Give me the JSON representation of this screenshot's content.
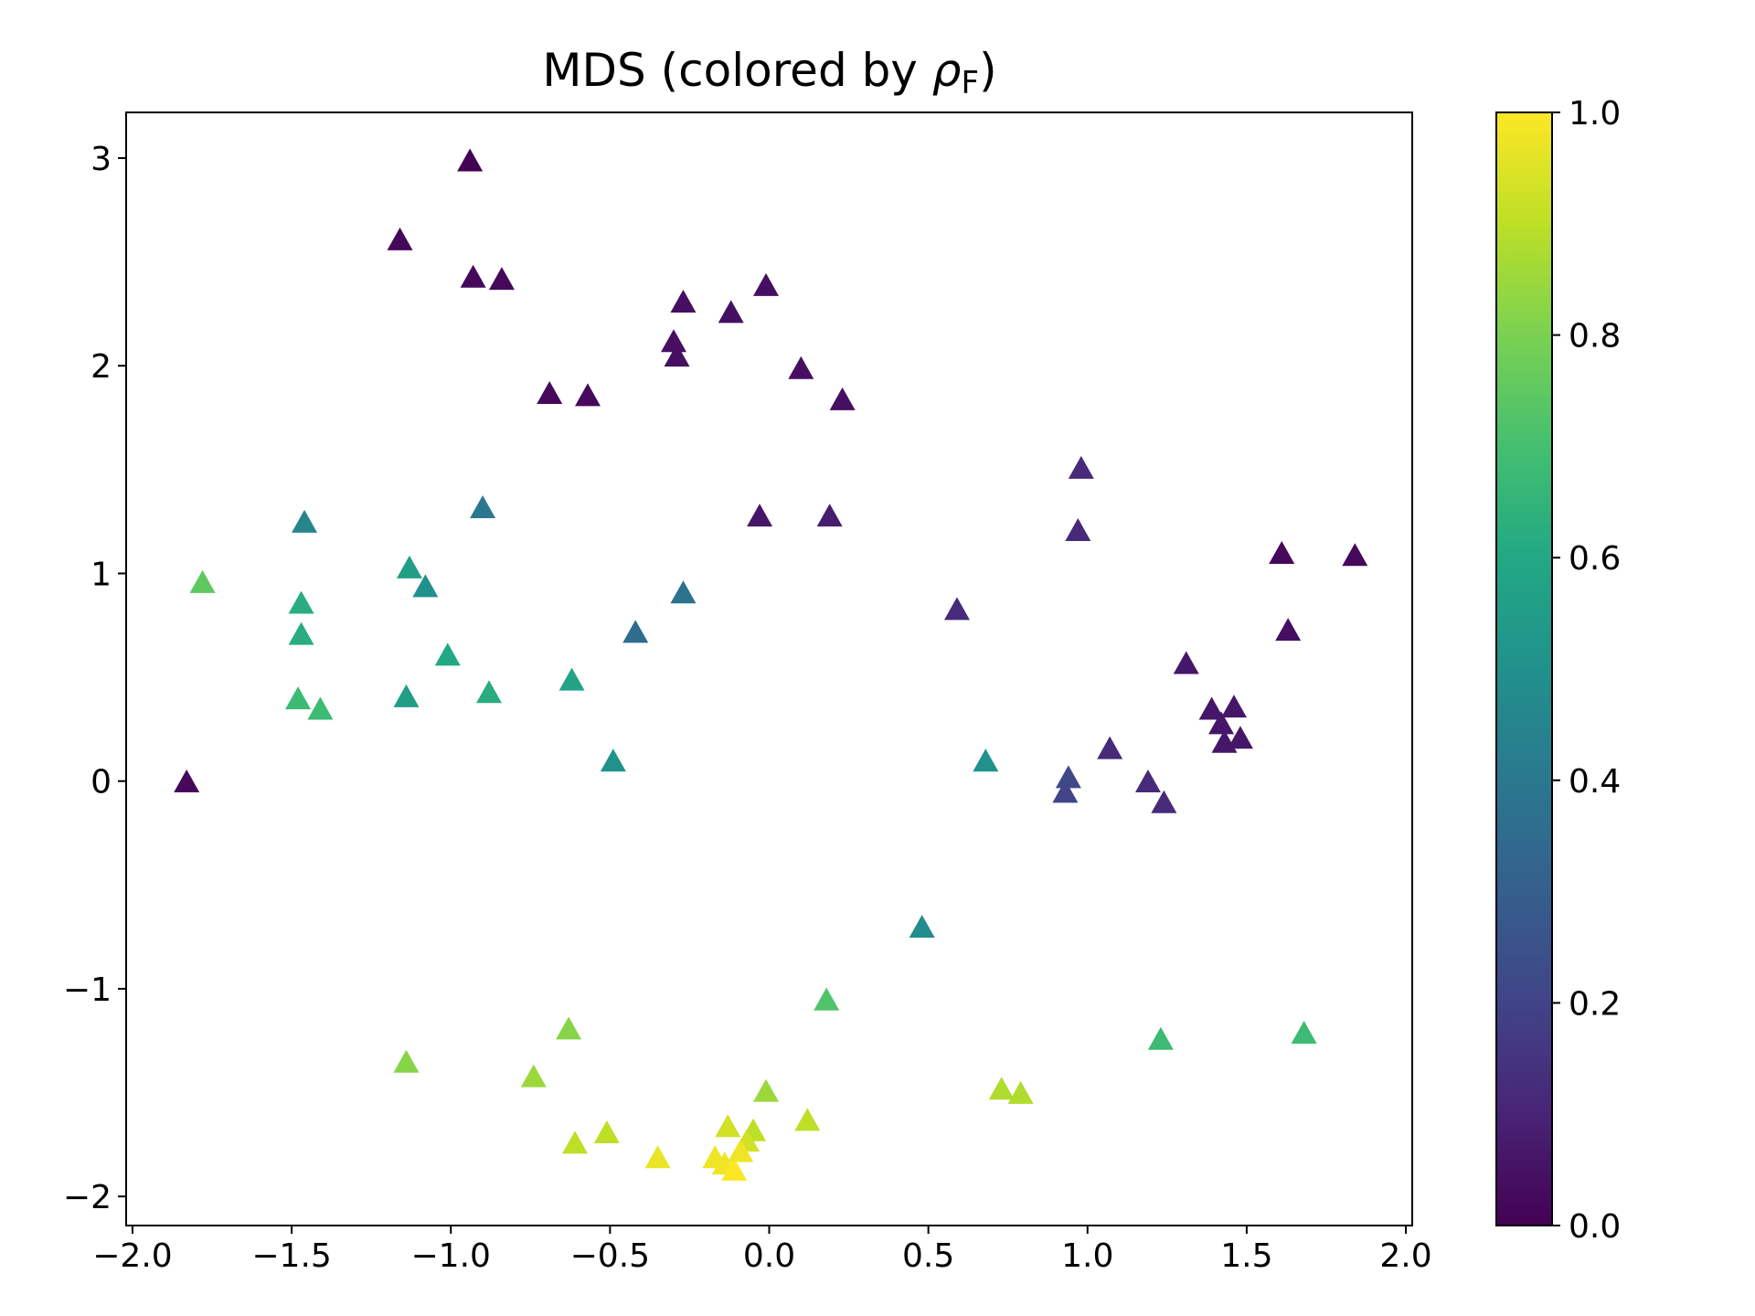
{
  "chart_data": {
    "type": "scatter",
    "title": "MDS (colored by ",
    "title_symbol": "ρ",
    "title_subscript": "F",
    "title_close": ")",
    "marker": "triangle",
    "colormap": "viridis",
    "xlim": [
      -2.02,
      2.02
    ],
    "ylim": [
      -2.14,
      3.22
    ],
    "xticks": [
      -2.0,
      -1.5,
      -1.0,
      -0.5,
      0.0,
      0.5,
      1.0,
      1.5,
      2.0
    ],
    "xtick_labels": [
      "−2.0",
      "−1.5",
      "−1.0",
      "−0.5",
      "0.0",
      "0.5",
      "1.0",
      "1.5",
      "2.0"
    ],
    "yticks": [
      -2,
      -1,
      0,
      1,
      2,
      3
    ],
    "ytick_labels": [
      "−2",
      "−1",
      "0",
      "1",
      "2",
      "3"
    ],
    "colorbar": {
      "range": [
        0.0,
        1.0
      ],
      "ticks": [
        0.0,
        0.2,
        0.4,
        0.6,
        0.8,
        1.0
      ],
      "tick_labels": [
        "0.0",
        "0.2",
        "0.4",
        "0.6",
        "0.8",
        "1.0"
      ]
    },
    "points": [
      {
        "x": -0.94,
        "y": 2.98,
        "c": 0.0
      },
      {
        "x": -1.16,
        "y": 2.6,
        "c": 0.02
      },
      {
        "x": -0.93,
        "y": 2.42,
        "c": 0.02
      },
      {
        "x": -0.84,
        "y": 2.41,
        "c": 0.02
      },
      {
        "x": -0.27,
        "y": 2.3,
        "c": 0.04
      },
      {
        "x": -0.3,
        "y": 2.11,
        "c": 0.04
      },
      {
        "x": -0.29,
        "y": 2.04,
        "c": 0.04
      },
      {
        "x": -0.12,
        "y": 2.25,
        "c": 0.04
      },
      {
        "x": -0.01,
        "y": 2.38,
        "c": 0.04
      },
      {
        "x": 0.1,
        "y": 1.98,
        "c": 0.04
      },
      {
        "x": 0.23,
        "y": 1.83,
        "c": 0.04
      },
      {
        "x": -0.69,
        "y": 1.86,
        "c": 0.02
      },
      {
        "x": -0.57,
        "y": 1.85,
        "c": 0.02
      },
      {
        "x": -0.03,
        "y": 1.27,
        "c": 0.06
      },
      {
        "x": 0.19,
        "y": 1.27,
        "c": 0.08
      },
      {
        "x": 0.98,
        "y": 1.5,
        "c": 0.12
      },
      {
        "x": 0.97,
        "y": 1.2,
        "c": 0.12
      },
      {
        "x": 0.59,
        "y": 0.82,
        "c": 0.12
      },
      {
        "x": -1.83,
        "y": -0.01,
        "c": 0.02
      },
      {
        "x": -1.46,
        "y": 1.24,
        "c": 0.45
      },
      {
        "x": -0.9,
        "y": 1.31,
        "c": 0.4
      },
      {
        "x": -1.13,
        "y": 1.02,
        "c": 0.55
      },
      {
        "x": -1.08,
        "y": 0.93,
        "c": 0.5
      },
      {
        "x": -1.47,
        "y": 0.85,
        "c": 0.62
      },
      {
        "x": -1.47,
        "y": 0.7,
        "c": 0.62
      },
      {
        "x": -1.78,
        "y": 0.95,
        "c": 0.75
      },
      {
        "x": -1.01,
        "y": 0.6,
        "c": 0.6
      },
      {
        "x": -1.48,
        "y": 0.39,
        "c": 0.68
      },
      {
        "x": -1.41,
        "y": 0.34,
        "c": 0.68
      },
      {
        "x": -1.14,
        "y": 0.4,
        "c": 0.55
      },
      {
        "x": -0.88,
        "y": 0.42,
        "c": 0.62
      },
      {
        "x": -0.62,
        "y": 0.48,
        "c": 0.58
      },
      {
        "x": -0.27,
        "y": 0.9,
        "c": 0.38
      },
      {
        "x": -0.42,
        "y": 0.71,
        "c": 0.35
      },
      {
        "x": -0.49,
        "y": 0.09,
        "c": 0.5
      },
      {
        "x": 0.68,
        "y": 0.09,
        "c": 0.5
      },
      {
        "x": 0.48,
        "y": -0.71,
        "c": 0.48
      },
      {
        "x": 0.94,
        "y": 0.01,
        "c": 0.22
      },
      {
        "x": 0.93,
        "y": -0.06,
        "c": 0.2
      },
      {
        "x": 1.07,
        "y": 0.15,
        "c": 0.12
      },
      {
        "x": 1.19,
        "y": -0.01,
        "c": 0.12
      },
      {
        "x": 1.24,
        "y": -0.11,
        "c": 0.12
      },
      {
        "x": 1.31,
        "y": 0.56,
        "c": 0.06
      },
      {
        "x": 1.39,
        "y": 0.34,
        "c": 0.06
      },
      {
        "x": 1.42,
        "y": 0.27,
        "c": 0.06
      },
      {
        "x": 1.43,
        "y": 0.18,
        "c": 0.06
      },
      {
        "x": 1.46,
        "y": 0.35,
        "c": 0.06
      },
      {
        "x": 1.48,
        "y": 0.2,
        "c": 0.06
      },
      {
        "x": 1.61,
        "y": 1.09,
        "c": 0.02
      },
      {
        "x": 1.84,
        "y": 1.08,
        "c": 0.02
      },
      {
        "x": 1.63,
        "y": 0.72,
        "c": 0.04
      },
      {
        "x": 0.18,
        "y": -1.06,
        "c": 0.72
      },
      {
        "x": 1.23,
        "y": -1.25,
        "c": 0.68
      },
      {
        "x": 1.68,
        "y": -1.22,
        "c": 0.68
      },
      {
        "x": -1.14,
        "y": -1.36,
        "c": 0.82
      },
      {
        "x": -0.63,
        "y": -1.2,
        "c": 0.82
      },
      {
        "x": -0.74,
        "y": -1.43,
        "c": 0.85
      },
      {
        "x": -0.61,
        "y": -1.75,
        "c": 0.9
      },
      {
        "x": -0.51,
        "y": -1.7,
        "c": 0.9
      },
      {
        "x": -0.35,
        "y": -1.82,
        "c": 0.97
      },
      {
        "x": -0.01,
        "y": -1.5,
        "c": 0.85
      },
      {
        "x": 0.12,
        "y": -1.64,
        "c": 0.9
      },
      {
        "x": 0.73,
        "y": -1.49,
        "c": 0.88
      },
      {
        "x": 0.79,
        "y": -1.51,
        "c": 0.88
      },
      {
        "x": -0.13,
        "y": -1.67,
        "c": 0.93
      },
      {
        "x": -0.05,
        "y": -1.69,
        "c": 0.9
      },
      {
        "x": -0.07,
        "y": -1.74,
        "c": 0.93
      },
      {
        "x": -0.17,
        "y": -1.82,
        "c": 0.98
      },
      {
        "x": -0.14,
        "y": -1.85,
        "c": 0.98
      },
      {
        "x": -0.11,
        "y": -1.88,
        "c": 1.0
      },
      {
        "x": -0.09,
        "y": -1.79,
        "c": 0.98
      }
    ]
  }
}
